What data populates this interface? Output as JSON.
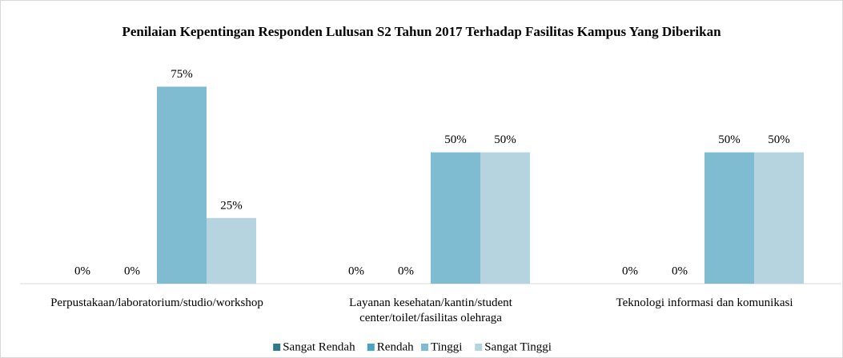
{
  "chart_data": {
    "type": "bar",
    "title": "Penilaian Kepentingan Responden Lulusan S2 Tahun 2017 Terhadap Fasilitas Kampus Yang Diberikan",
    "categories": [
      "Perpustakaan/laboratorium/studio/workshop",
      "Layanan kesehatan/kantin/student center/toilet/fasilitas olehraga",
      "Teknologi informasi dan komunikasi"
    ],
    "series": [
      {
        "name": "Sangat Rendah",
        "color": "#31788a",
        "values": [
          0,
          0,
          0
        ],
        "value_labels": [
          "0%",
          "0%",
          "0%"
        ]
      },
      {
        "name": "Rendah",
        "color": "#4aa3c0",
        "values": [
          0,
          0,
          0
        ],
        "value_labels": [
          "0%",
          "0%",
          "0%"
        ]
      },
      {
        "name": "Tinggi",
        "color": "#80bcd1",
        "values": [
          75,
          50,
          50
        ],
        "value_labels": [
          "75%",
          "50%",
          "50%"
        ]
      },
      {
        "name": "Sangat Tinggi",
        "color": "#b6d4e0",
        "values": [
          25,
          50,
          50
        ],
        "value_labels": [
          "25%",
          "50%",
          "50%"
        ]
      }
    ],
    "ylim": [
      0,
      80
    ],
    "legend": "bottom"
  }
}
